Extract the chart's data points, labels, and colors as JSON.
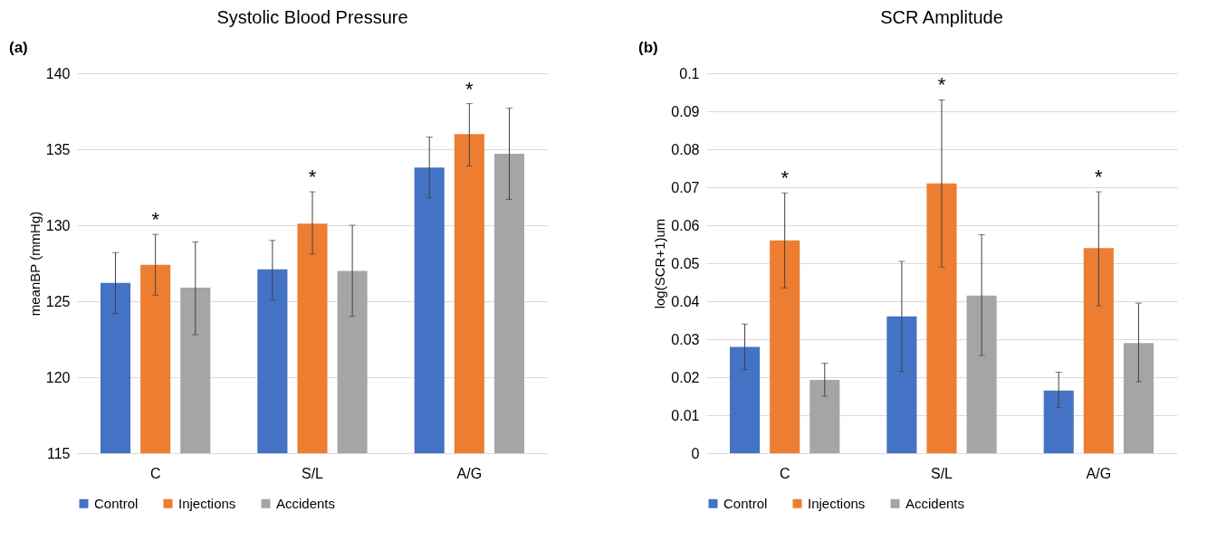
{
  "chart_data": [
    {
      "type": "bar",
      "title": "Systolic Blood Pressure",
      "ylabel": "meanBP (mmHg)",
      "categories": [
        "C",
        "S/L",
        "A/G"
      ],
      "series": [
        {
          "name": "Control",
          "color": "#4472c4",
          "values": [
            126.2,
            127.1,
            133.8
          ],
          "errors": [
            [
              124.2,
              128.2
            ],
            [
              125.1,
              129.0
            ],
            [
              131.8,
              135.8
            ]
          ]
        },
        {
          "name": "Injections",
          "color": "#ed7d31",
          "values": [
            127.4,
            130.1,
            136.0
          ],
          "errors": [
            [
              125.4,
              129.4
            ],
            [
              128.1,
              132.2
            ],
            [
              133.9,
              138.0
            ]
          ]
        },
        {
          "name": "Accidents",
          "color": "#a5a5a5",
          "values": [
            125.9,
            127.0,
            134.7
          ],
          "errors": [
            [
              122.8,
              128.9
            ],
            [
              124.0,
              130.0
            ],
            [
              131.7,
              137.7
            ]
          ]
        }
      ],
      "ylim": [
        115,
        140
      ],
      "yticks": [
        115,
        120,
        125,
        130,
        135,
        140
      ],
      "grid": "y",
      "legend": "bottom",
      "annotations": [
        "(a)",
        "*",
        "*",
        "*"
      ]
    },
    {
      "type": "bar",
      "title": "SCR Amplitude",
      "ylabel": "log(SCR+1)um",
      "categories": [
        "C",
        "S/L",
        "A/G"
      ],
      "series": [
        {
          "name": "Control",
          "color": "#4472c4",
          "values": [
            0.028,
            0.036,
            0.0165
          ],
          "errors": [
            [
              0.022,
              0.034
            ],
            [
              0.0215,
              0.0505
            ],
            [
              0.012,
              0.0213
            ]
          ]
        },
        {
          "name": "Injections",
          "color": "#ed7d31",
          "values": [
            0.056,
            0.071,
            0.054
          ],
          "errors": [
            [
              0.0435,
              0.0685
            ],
            [
              0.049,
              0.093
            ],
            [
              0.0388,
              0.0688
            ]
          ]
        },
        {
          "name": "Accidents",
          "color": "#a5a5a5",
          "values": [
            0.0193,
            0.0415,
            0.029
          ],
          "errors": [
            [
              0.015,
              0.0237
            ],
            [
              0.0257,
              0.0575
            ],
            [
              0.0188,
              0.0395
            ]
          ]
        }
      ],
      "ylim": [
        0,
        0.1
      ],
      "yticks": [
        0,
        0.01,
        0.02,
        0.03,
        0.04,
        0.05,
        0.06,
        0.07,
        0.08,
        0.09,
        0.1
      ],
      "grid": "y",
      "legend": "bottom",
      "annotations": [
        "(b)",
        "*",
        "*",
        "*"
      ]
    }
  ]
}
